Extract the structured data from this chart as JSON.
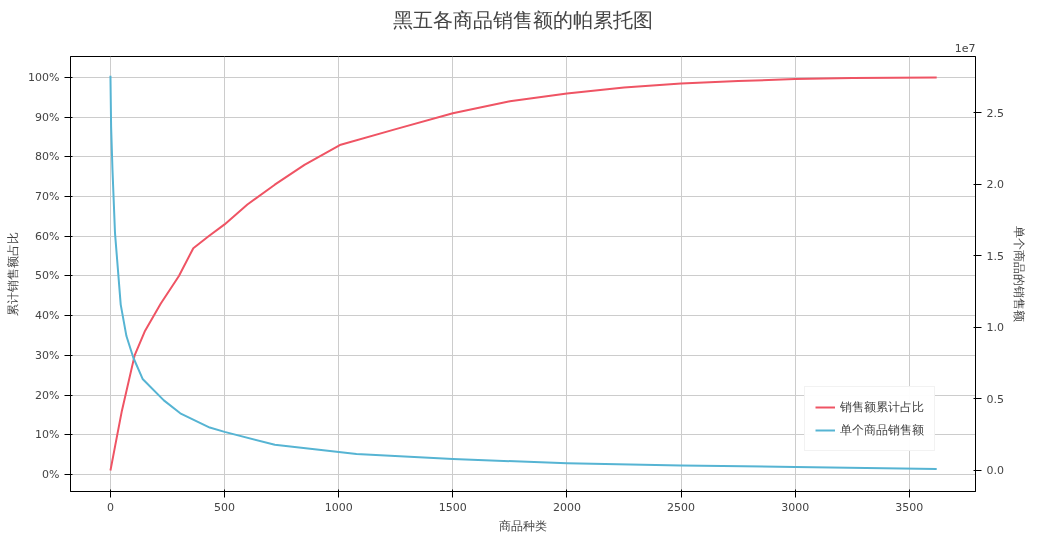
{
  "chart_data": {
    "type": "line",
    "title": "黑五各商品销售额的帕累托图",
    "xlabel": "商品种类",
    "ylabel": "累计销售额占比",
    "y2label": "单个商品的销售额",
    "xlim": [
      -175,
      3790
    ],
    "xticks": [
      0,
      500,
      1000,
      1500,
      2000,
      2500,
      3000,
      3500
    ],
    "ylim": [
      -4.3,
      105.3
    ],
    "yticks": [
      {
        "value": 0,
        "label": "0%"
      },
      {
        "value": 10,
        "label": "10%"
      },
      {
        "value": 20,
        "label": "20%"
      },
      {
        "value": 30,
        "label": "30%"
      },
      {
        "value": 40,
        "label": "40%"
      },
      {
        "value": 50,
        "label": "50%"
      },
      {
        "value": 60,
        "label": "60%"
      },
      {
        "value": 70,
        "label": "70%"
      },
      {
        "value": 80,
        "label": "80%"
      },
      {
        "value": 90,
        "label": "90%"
      },
      {
        "value": 100,
        "label": "100%"
      }
    ],
    "y2lim": [
      -0.147,
      2.895
    ],
    "y2ticks": [
      {
        "value": 0,
        "label": "0.0"
      },
      0.5,
      {
        "value": 1,
        "label": "1.0"
      },
      1.5,
      {
        "value": 2,
        "label": "2.0"
      },
      2.5
    ],
    "annotations": [
      "1e7"
    ],
    "grid": true,
    "legend": "bottom right",
    "marker": "none",
    "line_style": "solid",
    "series": [
      {
        "name": "销售额累计占比",
        "color": "#ef5464",
        "x": [
          0,
          20,
          50,
          106,
          150,
          220,
          300,
          363,
          430,
          500,
          600,
          720,
          850,
          1005,
          1250,
          1500,
          1750,
          2000,
          2250,
          2500,
          2750,
          3000,
          3250,
          3620
        ],
        "values": [
          1,
          7,
          16,
          30,
          36,
          43,
          50,
          57,
          60,
          63,
          68,
          73,
          78,
          83,
          87,
          91,
          94,
          96,
          97.5,
          98.5,
          99.1,
          99.6,
          99.9,
          100
        ]
      },
      {
        "name": "单个商品销售额",
        "color": "#56b4d3",
        "axis": "y2",
        "x": [
          0,
          3,
          9,
          20,
          45,
          70,
          100,
          141,
          234,
          306,
          435,
          500,
          720,
          1078,
          1500,
          2000,
          2500,
          3000,
          3620
        ],
        "values": [
          2.76,
          2.4,
          2.1,
          1.66,
          1.16,
          0.94,
          0.79,
          0.64,
          0.49,
          0.4,
          0.3,
          0.27,
          0.18,
          0.116,
          0.08,
          0.05,
          0.035,
          0.025,
          0.01
        ]
      }
    ]
  }
}
